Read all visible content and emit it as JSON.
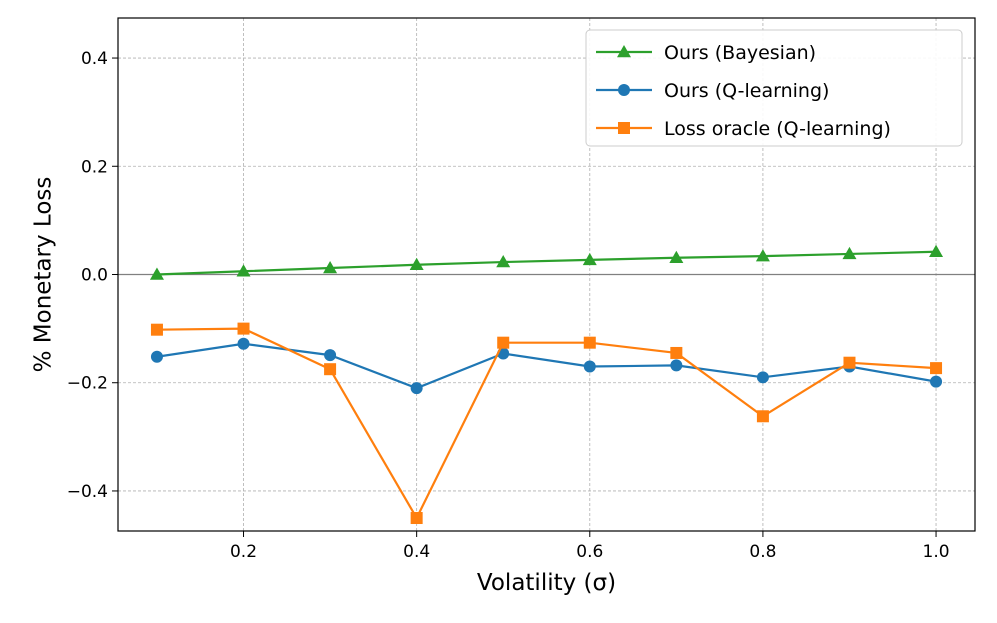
{
  "chart_data": {
    "type": "line",
    "title": "",
    "xlabel": "Volatility (σ)",
    "ylabel": "% Monetary Loss",
    "xlim": [
      0.055,
      1.045
    ],
    "ylim": [
      -0.474,
      0.474
    ],
    "xticks": [
      0.2,
      0.4,
      0.6,
      0.8,
      1.0
    ],
    "xtick_labels": [
      "0.2",
      "0.4",
      "0.6",
      "0.8",
      "1.0"
    ],
    "yticks": [
      -0.4,
      -0.2,
      0.0,
      0.2,
      0.4
    ],
    "ytick_labels": [
      "−0.4",
      "−0.2",
      "0.0",
      "0.2",
      "0.4"
    ],
    "grid": true,
    "legend_position": "top-right",
    "zero_line": true,
    "x": [
      0.1,
      0.2,
      0.3,
      0.4,
      0.5,
      0.6,
      0.7,
      0.8,
      0.9,
      1.0
    ],
    "series": [
      {
        "name": "Ours (Bayesian)",
        "color": "#2ca02c",
        "marker": "triangle",
        "values": [
          0.0,
          0.006,
          0.012,
          0.018,
          0.023,
          0.027,
          0.031,
          0.034,
          0.038,
          0.042
        ]
      },
      {
        "name": "Ours (Q-learning)",
        "color": "#1f77b4",
        "marker": "circle",
        "values": [
          -0.152,
          -0.128,
          -0.149,
          -0.21,
          -0.146,
          -0.17,
          -0.168,
          -0.19,
          -0.17,
          -0.198
        ]
      },
      {
        "name": "Loss oracle (Q-learning)",
        "color": "#ff7f0e",
        "marker": "square",
        "values": [
          -0.102,
          -0.1,
          -0.175,
          -0.45,
          -0.126,
          -0.126,
          -0.145,
          -0.262,
          -0.163,
          -0.173
        ]
      }
    ]
  }
}
